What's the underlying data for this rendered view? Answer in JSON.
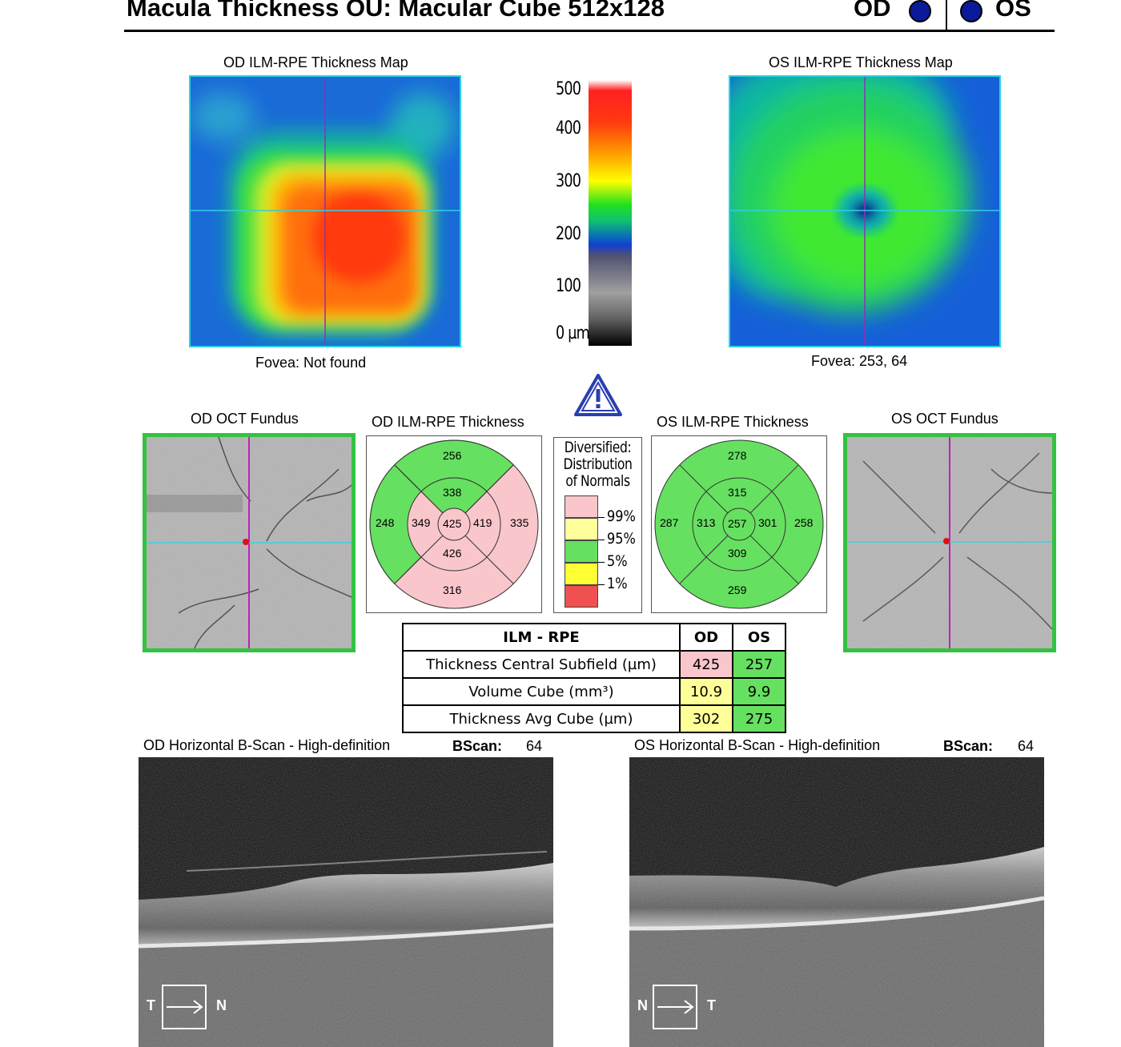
{
  "header": {
    "title": "Macula Thickness OU: Macular Cube 512x128",
    "od_label": "OD",
    "os_label": "OS"
  },
  "od_map": {
    "title": "OD ILM-RPE Thickness Map",
    "fovea": "Fovea: Not found"
  },
  "os_map": {
    "title": "OS ILM-RPE Thickness Map",
    "fovea": "Fovea: 253, 64"
  },
  "scale": {
    "ticks": [
      "500",
      "400",
      "300",
      "200",
      "100",
      "0 µm"
    ]
  },
  "warning": {
    "icon": "warning-triangle-icon"
  },
  "od_fundus": {
    "title": "OD OCT Fundus"
  },
  "os_fundus": {
    "title": "OS OCT Fundus"
  },
  "od_grid": {
    "title": "OD ILM-RPE Thickness",
    "superior_outer": "256",
    "superior_inner": "338",
    "nasal_outer": "248",
    "nasal_inner": "349",
    "center": "425",
    "temporal_inner": "419",
    "temporal_outer": "335",
    "inferior_inner": "426",
    "inferior_outer": "316"
  },
  "os_grid": {
    "title": "OS ILM-RPE Thickness",
    "superior_outer": "278",
    "superior_inner": "315",
    "nasal_outer": "287",
    "nasal_inner": "313",
    "center": "257",
    "temporal_inner": "301",
    "temporal_outer": "258",
    "inferior_inner": "309",
    "inferior_outer": "259"
  },
  "legend": {
    "title_lines": [
      "Diversified:",
      "Distribution",
      "of Normals"
    ],
    "levels": [
      "99%",
      "95%",
      "5%",
      "1%"
    ],
    "colors": {
      "pink": "#f9c6cc",
      "light_yellow": "#ffff99",
      "green": "#66e060",
      "yellow": "#ffff33",
      "red": "#f05050"
    }
  },
  "table": {
    "headers": [
      "ILM - RPE",
      "OD",
      "OS"
    ],
    "rows": [
      {
        "label": "Thickness Central Subfield (µm)",
        "od": "425",
        "os": "257"
      },
      {
        "label": "Volume Cube (mm³)",
        "od": "10.9",
        "os": "9.9"
      },
      {
        "label": "Thickness Avg Cube (µm)",
        "od": "302",
        "os": "275"
      }
    ]
  },
  "od_bscan": {
    "title": "OD Horizontal B-Scan - High-definition",
    "bscan_label": "BScan:",
    "bscan_value": "64",
    "left": "T",
    "right": "N"
  },
  "os_bscan": {
    "title": "OS Horizontal B-Scan - High-definition",
    "bscan_label": "BScan:",
    "bscan_value": "64",
    "left": "N",
    "right": "T"
  }
}
